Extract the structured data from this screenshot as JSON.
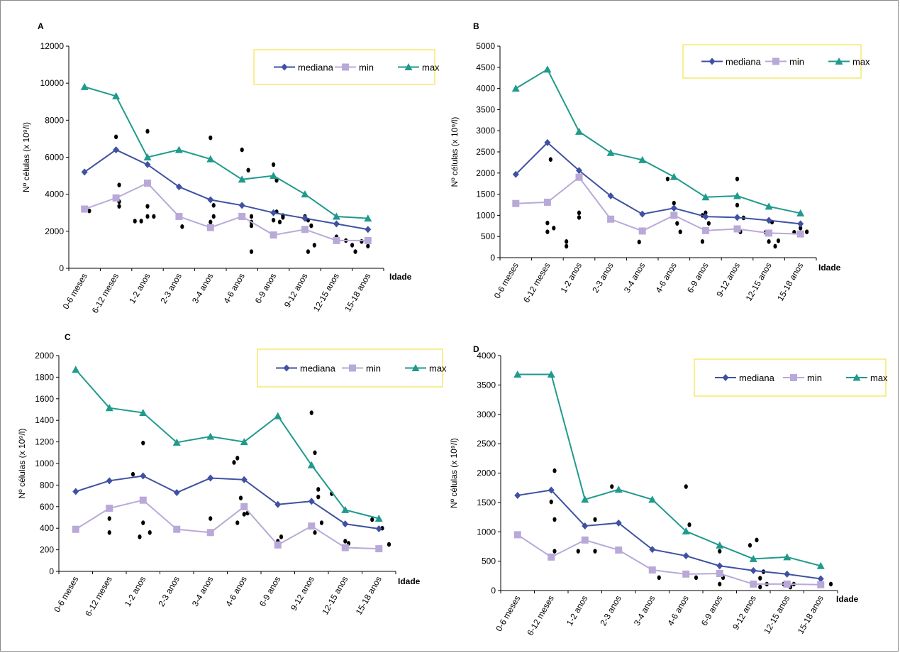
{
  "chart_data": [
    {
      "type": "line",
      "panel": "A",
      "ylabel": "Nº células (x 10⁹/l)",
      "xlabel": "Idade",
      "ylim": [
        0,
        12000
      ],
      "yticks": [
        0,
        2000,
        4000,
        6000,
        8000,
        10000,
        12000
      ],
      "categories": [
        "0-6 meses",
        "6-12 meses",
        "1-2 anos",
        "2-3 anos",
        "3-4 anos",
        "4-6 anos",
        "6-9 anos",
        "9-12 anos",
        "12-15 anos",
        "15-18 anos"
      ],
      "legend": "top-right",
      "series": [
        {
          "name": "mediana",
          "color": "#3f51a3",
          "marker": "diamond",
          "values": [
            5200,
            6400,
            5600,
            4400,
            3700,
            3400,
            3000,
            2700,
            2400,
            2100
          ]
        },
        {
          "name": "min",
          "color": "#b9a9d8",
          "marker": "square",
          "values": [
            3200,
            3800,
            4600,
            2800,
            2200,
            2800,
            1800,
            2100,
            1500,
            1500
          ]
        },
        {
          "name": "max",
          "color": "#1f9a8c",
          "marker": "triangle",
          "values": [
            9800,
            9300,
            6000,
            6400,
            5900,
            4800,
            5000,
            4000,
            2800,
            2700
          ]
        }
      ],
      "scatter": [
        [
          0.15,
          3100
        ],
        [
          1.0,
          7100
        ],
        [
          1.1,
          4500
        ],
        [
          1.1,
          3600
        ],
        [
          1.1,
          3350
        ],
        [
          1.6,
          2550
        ],
        [
          1.8,
          2550
        ],
        [
          2.0,
          7400
        ],
        [
          2.0,
          3350
        ],
        [
          2.0,
          2800
        ],
        [
          2.2,
          2800
        ],
        [
          3.1,
          2250
        ],
        [
          4.0,
          7050
        ],
        [
          4.1,
          3400
        ],
        [
          4.1,
          2800
        ],
        [
          4.0,
          2500
        ],
        [
          5.0,
          6400
        ],
        [
          5.2,
          5300
        ],
        [
          5.3,
          2800
        ],
        [
          5.3,
          2500
        ],
        [
          5.3,
          2300
        ],
        [
          5.3,
          900
        ],
        [
          6.0,
          5600
        ],
        [
          6.1,
          4750
        ],
        [
          6.1,
          3050
        ],
        [
          6.0,
          2600
        ],
        [
          6.2,
          2500
        ],
        [
          6.3,
          2850
        ],
        [
          6.3,
          2750
        ],
        [
          7.0,
          2800
        ],
        [
          7.1,
          2600
        ],
        [
          7.2,
          2300
        ],
        [
          7.3,
          1250
        ],
        [
          7.1,
          900
        ],
        [
          8.0,
          1700
        ],
        [
          8.3,
          1500
        ],
        [
          8.5,
          1250
        ],
        [
          8.6,
          900
        ],
        [
          8.8,
          1450
        ],
        [
          9.0,
          1200
        ]
      ]
    },
    {
      "type": "line",
      "panel": "B",
      "ylabel": "Nº células (x 10⁹/l)",
      "xlabel": "Idade",
      "ylim": [
        0,
        5000
      ],
      "yticks": [
        0,
        500,
        1000,
        1500,
        2000,
        2500,
        3000,
        3500,
        4000,
        4500,
        5000
      ],
      "categories": [
        "0-6 meses",
        "6-12 meses",
        "1-2 anos",
        "2-3 anos",
        "3-4 anos",
        "4-6 anos",
        "6-9 anos",
        "9-12 anos",
        "12-15 anos",
        "15-18 anos"
      ],
      "legend": "top-right",
      "series": [
        {
          "name": "mediana",
          "color": "#3f51a3",
          "marker": "diamond",
          "values": [
            1970,
            2720,
            2060,
            1460,
            1030,
            1170,
            970,
            950,
            880,
            800
          ]
        },
        {
          "name": "min",
          "color": "#b9a9d8",
          "marker": "square",
          "values": [
            1280,
            1310,
            1900,
            910,
            630,
            1000,
            640,
            680,
            580,
            560
          ]
        },
        {
          "name": "max",
          "color": "#1f9a8c",
          "marker": "triangle",
          "values": [
            4000,
            4450,
            2980,
            2480,
            2310,
            1910,
            1430,
            1460,
            1210,
            1050
          ]
        }
      ],
      "scatter": [
        [
          1.1,
          2320
        ],
        [
          1.0,
          820
        ],
        [
          1.0,
          610
        ],
        [
          1.2,
          700
        ],
        [
          1.6,
          380
        ],
        [
          1.6,
          270
        ],
        [
          2.0,
          1060
        ],
        [
          2.0,
          950
        ],
        [
          3.9,
          370
        ],
        [
          4.8,
          1860
        ],
        [
          5.0,
          1290
        ],
        [
          5.1,
          810
        ],
        [
          5.2,
          610
        ],
        [
          6.0,
          1060
        ],
        [
          5.9,
          1000
        ],
        [
          6.1,
          810
        ],
        [
          5.9,
          380
        ],
        [
          7.0,
          1860
        ],
        [
          7.0,
          1240
        ],
        [
          7.2,
          940
        ],
        [
          7.0,
          700
        ],
        [
          7.1,
          610
        ],
        [
          7.9,
          600
        ],
        [
          8.0,
          380
        ],
        [
          8.1,
          840
        ],
        [
          8.2,
          270
        ],
        [
          8.3,
          400
        ],
        [
          8.8,
          600
        ],
        [
          9.0,
          700
        ],
        [
          9.2,
          610
        ]
      ]
    },
    {
      "type": "line",
      "panel": "C",
      "ylabel": "Nº células (x 10⁹/l)",
      "xlabel": "Idade",
      "ylim": [
        0,
        2000
      ],
      "yticks": [
        0,
        200,
        400,
        600,
        800,
        1000,
        1200,
        1400,
        1600,
        1800,
        2000
      ],
      "categories": [
        "0-6 meses",
        "6-12 meses",
        "1-2 anos",
        "2-3 anos",
        "3-4 anos",
        "4-6 anos",
        "6-9 anos",
        "9-12 anos",
        "12-15 anos",
        "15-18 anos"
      ],
      "legend": "top-right",
      "series": [
        {
          "name": "mediana",
          "color": "#3f51a3",
          "marker": "diamond",
          "values": [
            740,
            840,
            885,
            730,
            865,
            850,
            620,
            650,
            440,
            395
          ]
        },
        {
          "name": "min",
          "color": "#b9a9d8",
          "marker": "square",
          "values": [
            390,
            585,
            660,
            390,
            360,
            600,
            245,
            420,
            220,
            210
          ]
        },
        {
          "name": "max",
          "color": "#1f9a8c",
          "marker": "triangle",
          "values": [
            1870,
            1515,
            1470,
            1195,
            1250,
            1200,
            1440,
            985,
            570,
            490
          ]
        }
      ],
      "scatter": [
        [
          1.0,
          490
        ],
        [
          1.0,
          360
        ],
        [
          1.7,
          900
        ],
        [
          2.0,
          1190
        ],
        [
          2.0,
          450
        ],
        [
          1.9,
          320
        ],
        [
          2.2,
          360
        ],
        [
          4.0,
          490
        ],
        [
          4.7,
          1010
        ],
        [
          4.8,
          1050
        ],
        [
          4.9,
          680
        ],
        [
          4.8,
          450
        ],
        [
          5.1,
          540
        ],
        [
          5.0,
          530
        ],
        [
          6.0,
          280
        ],
        [
          6.1,
          320
        ],
        [
          6.0,
          240
        ],
        [
          7.0,
          1470
        ],
        [
          7.1,
          1100
        ],
        [
          7.2,
          760
        ],
        [
          7.2,
          690
        ],
        [
          7.1,
          360
        ],
        [
          7.3,
          450
        ],
        [
          7.6,
          720
        ],
        [
          8.0,
          280
        ],
        [
          8.1,
          260
        ],
        [
          8.8,
          480
        ],
        [
          9.0,
          480
        ],
        [
          9.1,
          400
        ],
        [
          9.3,
          250
        ]
      ]
    },
    {
      "type": "line",
      "panel": "D",
      "ylabel": "Nº células (x 10⁹/l)",
      "xlabel": "Idade",
      "ylim": [
        0,
        4000
      ],
      "yticks": [
        0,
        500,
        1000,
        1500,
        2000,
        2500,
        3000,
        3500,
        4000
      ],
      "categories": [
        "0-6 meses",
        "6-12 meses",
        "1-2 anos",
        "2-3 anos",
        "3-4 anos",
        "4-6 anos",
        "6-9 anos",
        "9-12 anos",
        "12-15 anos",
        "15-18 anos"
      ],
      "legend": "top-right",
      "series": [
        {
          "name": "mediana",
          "color": "#3f51a3",
          "marker": "diamond",
          "values": [
            1620,
            1710,
            1100,
            1150,
            700,
            590,
            420,
            340,
            280,
            200
          ]
        },
        {
          "name": "min",
          "color": "#b9a9d8",
          "marker": "square",
          "values": [
            950,
            570,
            860,
            690,
            350,
            280,
            290,
            110,
            110,
            100
          ]
        },
        {
          "name": "max",
          "color": "#1f9a8c",
          "marker": "triangle",
          "values": [
            3680,
            3680,
            1550,
            1720,
            1550,
            1010,
            770,
            540,
            570,
            420
          ]
        }
      ],
      "scatter": [
        [
          1.1,
          2040
        ],
        [
          1.0,
          1510
        ],
        [
          1.1,
          1210
        ],
        [
          1.1,
          670
        ],
        [
          1.8,
          670
        ],
        [
          2.3,
          1210
        ],
        [
          2.3,
          670
        ],
        [
          2.8,
          1770
        ],
        [
          4.2,
          220
        ],
        [
          5.0,
          1770
        ],
        [
          5.1,
          1120
        ],
        [
          5.3,
          220
        ],
        [
          6.0,
          670
        ],
        [
          6.1,
          220
        ],
        [
          6.0,
          110
        ],
        [
          6.9,
          770
        ],
        [
          7.1,
          860
        ],
        [
          7.3,
          320
        ],
        [
          7.2,
          210
        ],
        [
          7.4,
          110
        ],
        [
          7.2,
          60
        ],
        [
          7.9,
          110
        ],
        [
          8.1,
          60
        ],
        [
          8.2,
          110
        ],
        [
          9.0,
          110
        ],
        [
          9.3,
          110
        ]
      ]
    }
  ]
}
